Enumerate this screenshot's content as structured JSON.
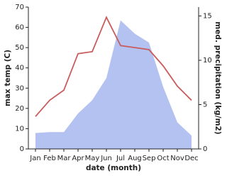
{
  "chart_data": {
    "type": "line",
    "x_label": "date (month)",
    "y_label": "max temp (C)",
    "y2_label": "med. precipitation (kg/m2)",
    "categories": [
      "Jan",
      "Feb",
      "Mar",
      "Apr",
      "May",
      "Jun",
      "Jul",
      "Aug",
      "Sep",
      "Oct",
      "Nov",
      "Dec"
    ],
    "series": [
      {
        "name": "max temp",
        "color": "#c95c5c",
        "values": [
          16,
          24,
          29,
          47,
          48,
          65,
          51,
          50,
          49,
          41,
          31,
          24
        ]
      },
      {
        "name": "med. precipitation",
        "color": "#b4c2f2",
        "axis": "y2",
        "area": true,
        "values": [
          1.8,
          1.9,
          1.9,
          4,
          5.5,
          8,
          14.5,
          13,
          12,
          7,
          3,
          1.5
        ]
      }
    ],
    "ylim": [
      0,
      70
    ],
    "yticks": [
      0,
      10,
      20,
      30,
      40,
      50,
      60,
      70
    ],
    "y2lim": [
      0,
      16
    ],
    "y2ticks": [
      0,
      5,
      10,
      15
    ]
  }
}
